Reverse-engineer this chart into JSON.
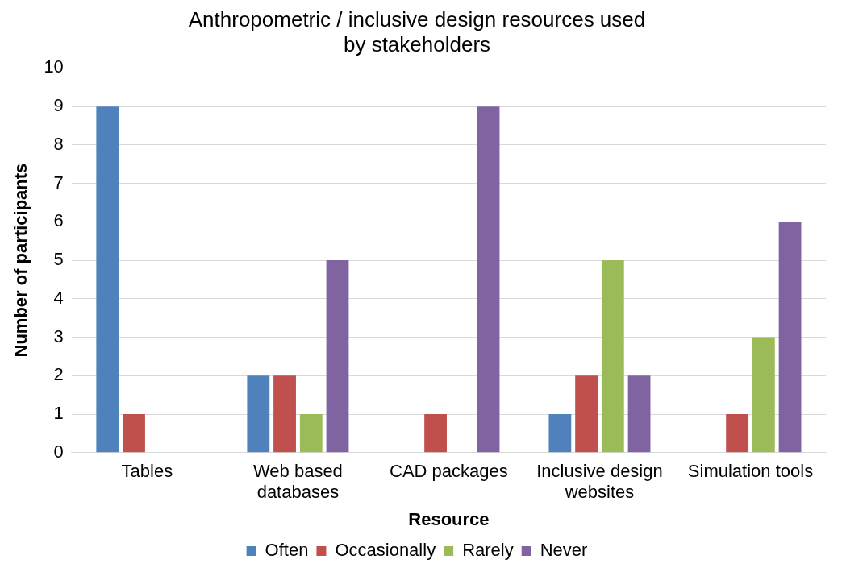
{
  "chart_data": {
    "type": "bar",
    "title": "Anthropometric / inclusive design resources used by stakeholders",
    "xlabel": "Resource",
    "ylabel": "Number of participants",
    "categories": [
      "Tables",
      "Web based databases",
      "CAD packages",
      "Inclusive design websites",
      "Simulation tools"
    ],
    "series": [
      {
        "name": "Often",
        "color": "#4f81bd",
        "values": [
          9,
          2,
          0,
          1,
          0
        ]
      },
      {
        "name": "Occasionally",
        "color": "#c0504d",
        "values": [
          1,
          2,
          1,
          2,
          1
        ]
      },
      {
        "name": "Rarely",
        "color": "#9bbb59",
        "values": [
          0,
          1,
          0,
          5,
          3
        ]
      },
      {
        "name": "Never",
        "color": "#8064a2",
        "values": [
          0,
          5,
          9,
          2,
          6
        ]
      }
    ],
    "ylim": [
      0,
      10
    ],
    "yticks": [
      0,
      1,
      2,
      3,
      4,
      5,
      6,
      7,
      8,
      9,
      10
    ],
    "grid": "y",
    "legend": "bottom"
  }
}
